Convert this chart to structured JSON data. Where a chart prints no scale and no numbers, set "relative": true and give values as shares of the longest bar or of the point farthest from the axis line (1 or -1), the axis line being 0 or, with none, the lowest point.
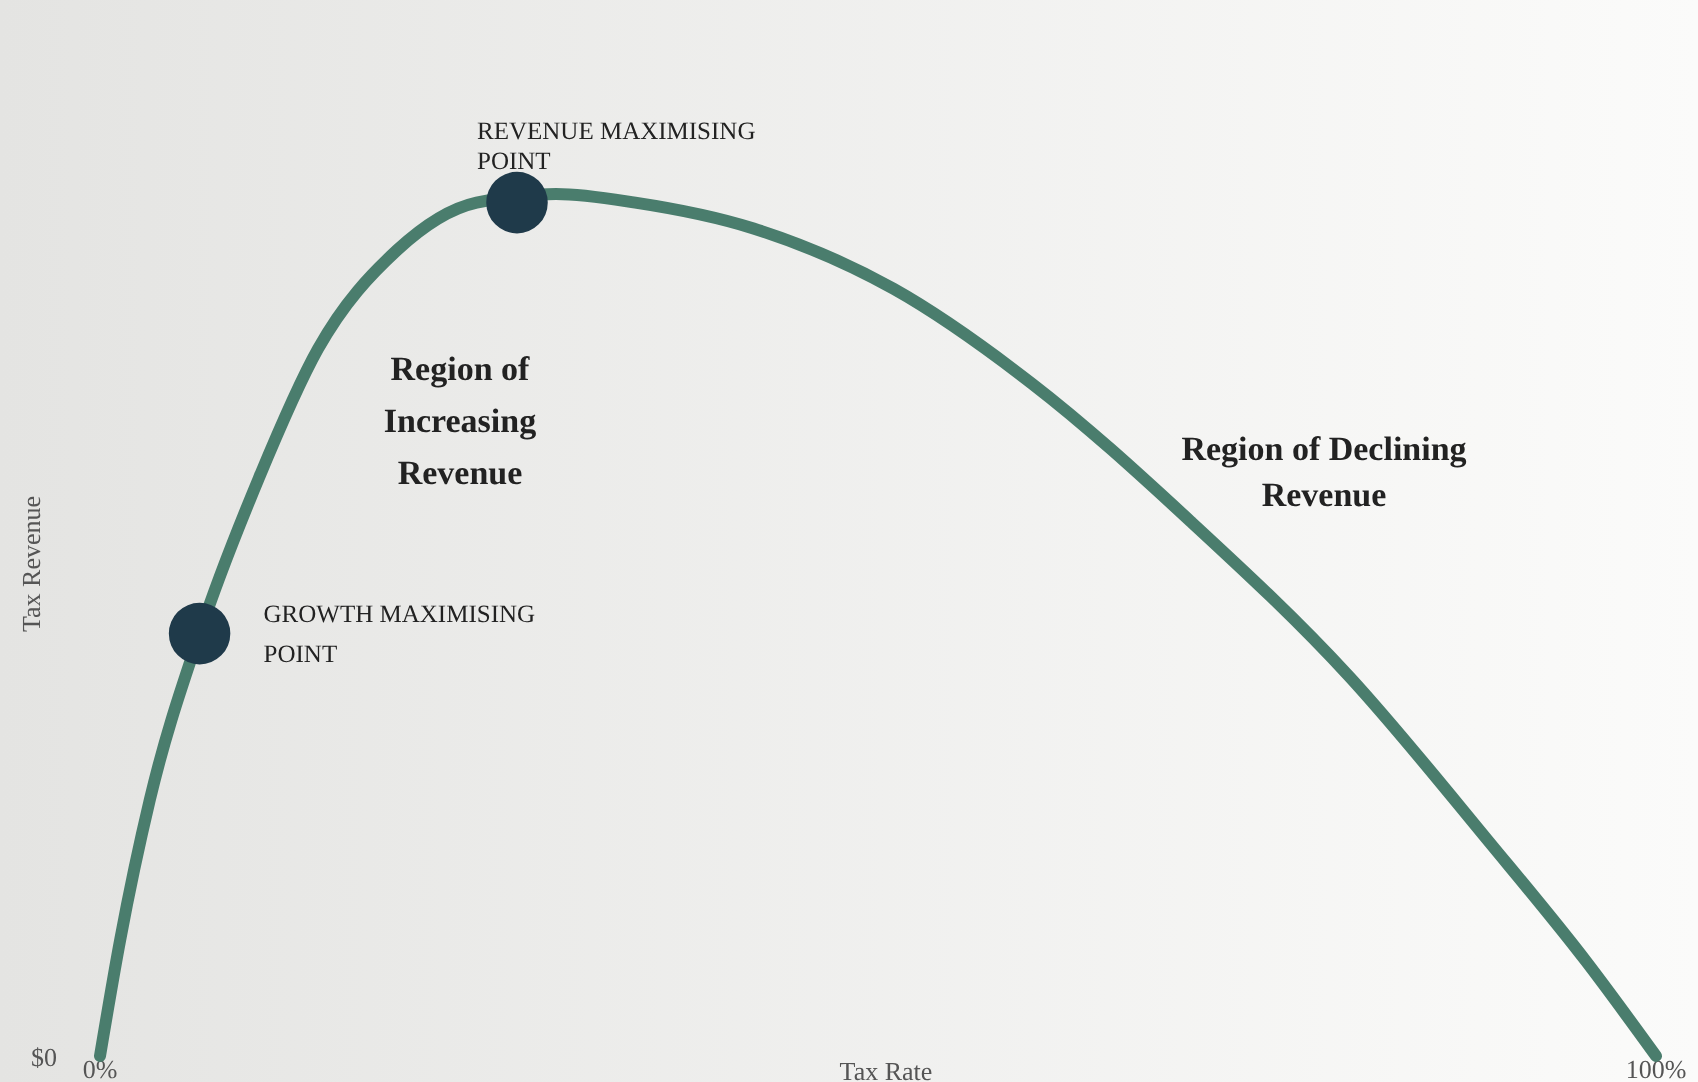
{
  "chart_data": {
    "type": "line",
    "relative": true,
    "xlabel": "Tax Rate",
    "ylabel": "Tax Revenue",
    "xlim": [
      0,
      100
    ],
    "xticks": [
      {
        "value": 0,
        "label": "0%"
      },
      {
        "value": 100,
        "label": "100%"
      }
    ],
    "tick_labels": "x",
    "grid": false,
    "series": [
      {
        "color": "#4a7d6d",
        "marker": "none",
        "x": [
          0,
          1.3,
          3.2,
          6.4,
          10.2,
          14.0,
          19.1,
          24.2,
          29.3,
          34.4,
          42.0,
          51.0,
          59.9,
          70.1,
          80.3,
          89.2,
          95.5,
          100
        ],
        "values": [
          0,
          0.135,
          0.297,
          0.49,
          0.67,
          0.82,
          0.935,
          0.99,
          1.0,
          0.99,
          0.96,
          0.89,
          0.78,
          0.62,
          0.44,
          0.25,
          0.11,
          0
        ]
      },
      {
        "type": "scatter",
        "color": "#1f3a4a",
        "marker": "circle",
        "x": [
          6.4,
          26.8
        ],
        "values": [
          0.49,
          0.99
        ]
      }
    ],
    "annotations": [
      {
        "text": "GROWTH MAXIMISING\nPOINT",
        "x": 6.4,
        "y": 0.49
      },
      {
        "text": "REVENUE MAXIMISING\nPOINT",
        "x": 26.8,
        "y": 0.99
      },
      "Region of\nIncreasing\nRevenue",
      "Region of Declining\nRevenue",
      "$0"
    ]
  }
}
